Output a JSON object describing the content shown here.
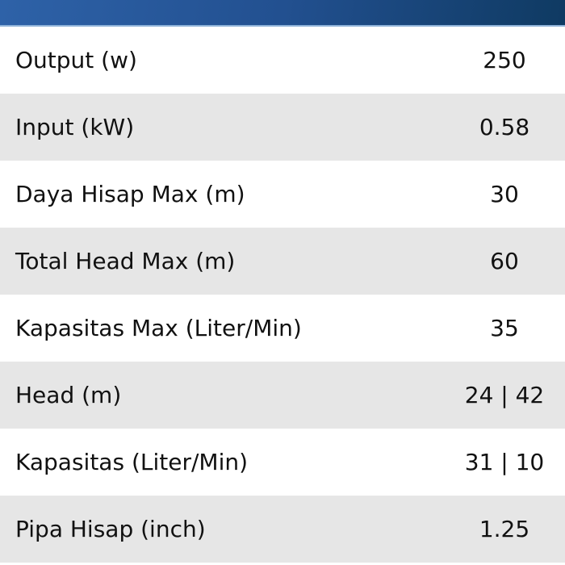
{
  "specs": [
    {
      "label": "Output (w)",
      "value": "250"
    },
    {
      "label": "Input (kW)",
      "value": "0.58"
    },
    {
      "label": "Daya Hisap Max (m)",
      "value": "30"
    },
    {
      "label": "Total Head Max (m)",
      "value": "60"
    },
    {
      "label": "Kapasitas Max (Liter/Min)",
      "value": "35"
    },
    {
      "label": "Head (m)",
      "value": "24 | 42"
    },
    {
      "label": "Kapasitas (Liter/Min)",
      "value": "31 | 10"
    },
    {
      "label": "Pipa Hisap (inch)",
      "value": "1.25"
    }
  ],
  "colors": {
    "header_start": "#2e62a8",
    "header_end": "#0f3a62",
    "stripe": "#e6e6e6"
  }
}
